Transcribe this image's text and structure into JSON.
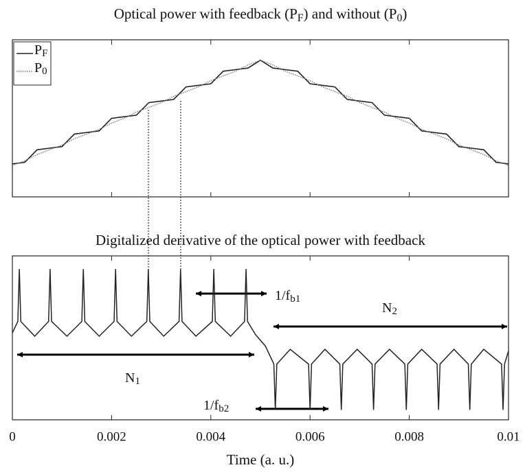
{
  "chart_data": [
    {
      "type": "line",
      "title_parts": [
        "Optical power with feedback (P",
        "F",
        ") and without (P",
        "0",
        ")"
      ],
      "xlim": [
        0,
        0.01
      ],
      "ylim": [
        0,
        1
      ],
      "x": [
        0,
        0.00025,
        0.0005,
        0.00075,
        0.001,
        0.00125,
        0.0015,
        0.00175,
        0.002,
        0.00225,
        0.0025,
        0.00275,
        0.003,
        0.00325,
        0.0035,
        0.00375,
        0.004,
        0.00425,
        0.0045,
        0.00475,
        0.005,
        0.00525,
        0.0055,
        0.00575,
        0.006,
        0.00625,
        0.0065,
        0.00675,
        0.007,
        0.00725,
        0.0075,
        0.00775,
        0.008,
        0.00825,
        0.0085,
        0.00875,
        0.009,
        0.00925,
        0.0095,
        0.00975,
        0.01
      ],
      "series": [
        {
          "name": "P",
          "sub": "F",
          "color": "#222222",
          "line_style": "solid",
          "values": [
            0.21,
            0.22,
            0.3,
            0.31,
            0.32,
            0.4,
            0.41,
            0.42,
            0.5,
            0.51,
            0.52,
            0.6,
            0.61,
            0.62,
            0.7,
            0.71,
            0.72,
            0.8,
            0.81,
            0.82,
            0.87,
            0.82,
            0.81,
            0.8,
            0.72,
            0.71,
            0.7,
            0.62,
            0.61,
            0.6,
            0.52,
            0.51,
            0.5,
            0.42,
            0.41,
            0.4,
            0.32,
            0.31,
            0.3,
            0.22,
            0.21
          ]
        },
        {
          "name": "P",
          "sub": "0",
          "color": "#777777",
          "line_style": "dotted",
          "values": [
            0.2,
            0.23,
            0.27,
            0.3,
            0.33,
            0.37,
            0.4,
            0.43,
            0.47,
            0.5,
            0.54,
            0.57,
            0.6,
            0.64,
            0.67,
            0.7,
            0.74,
            0.77,
            0.8,
            0.84,
            0.87,
            0.84,
            0.8,
            0.77,
            0.74,
            0.7,
            0.67,
            0.64,
            0.6,
            0.57,
            0.54,
            0.5,
            0.47,
            0.43,
            0.4,
            0.37,
            0.33,
            0.3,
            0.27,
            0.23,
            0.2
          ]
        }
      ]
    },
    {
      "type": "line",
      "title": "Digitalized derivative of the optical power with feedback",
      "xlabel": "Time (a. u.)",
      "xlim": [
        0,
        0.01
      ],
      "ylim": [
        0,
        1
      ],
      "xticks": [
        0,
        0.002,
        0.004,
        0.006,
        0.008,
        0.01
      ],
      "color": "#222222",
      "x": [
        0,
        0.00011,
        0.00014,
        0.00017,
        0.00045,
        0.00073,
        0.00076,
        0.00079,
        0.0011,
        0.0014,
        0.00143,
        0.00146,
        0.00175,
        0.00205,
        0.00208,
        0.00211,
        0.0024,
        0.00271,
        0.00274,
        0.00277,
        0.00305,
        0.00336,
        0.00339,
        0.00342,
        0.0037,
        0.00403,
        0.00406,
        0.00409,
        0.0044,
        0.00468,
        0.00471,
        0.00474,
        0.0049,
        0.0051,
        0.00527,
        0.0053,
        0.00533,
        0.0056,
        0.00597,
        0.006,
        0.00603,
        0.0063,
        0.0066,
        0.00663,
        0.00666,
        0.00695,
        0.00725,
        0.00728,
        0.00731,
        0.0076,
        0.00791,
        0.00794,
        0.00797,
        0.00825,
        0.00856,
        0.00859,
        0.00862,
        0.0089,
        0.00919,
        0.00922,
        0.00925,
        0.0095,
        0.00986,
        0.00989,
        0.00992,
        0.01
      ],
      "values": [
        0.53,
        0.6,
        0.92,
        0.6,
        0.51,
        0.6,
        0.92,
        0.6,
        0.51,
        0.6,
        0.92,
        0.6,
        0.51,
        0.6,
        0.92,
        0.6,
        0.51,
        0.6,
        0.92,
        0.6,
        0.51,
        0.6,
        0.92,
        0.6,
        0.51,
        0.6,
        0.92,
        0.6,
        0.51,
        0.6,
        0.92,
        0.6,
        0.52,
        0.45,
        0.34,
        0.06,
        0.34,
        0.43,
        0.34,
        0.06,
        0.34,
        0.43,
        0.34,
        0.06,
        0.34,
        0.43,
        0.34,
        0.06,
        0.34,
        0.43,
        0.34,
        0.06,
        0.34,
        0.43,
        0.34,
        0.06,
        0.34,
        0.43,
        0.34,
        0.06,
        0.34,
        0.43,
        0.34,
        0.06,
        0.34,
        0.42
      ],
      "annotations": [
        {
          "text": "1/f",
          "sub": "b1"
        },
        {
          "text": "N",
          "sub": "2"
        },
        {
          "text": "N",
          "sub": "1"
        },
        {
          "text": "1/f",
          "sub": "b2"
        }
      ]
    }
  ]
}
